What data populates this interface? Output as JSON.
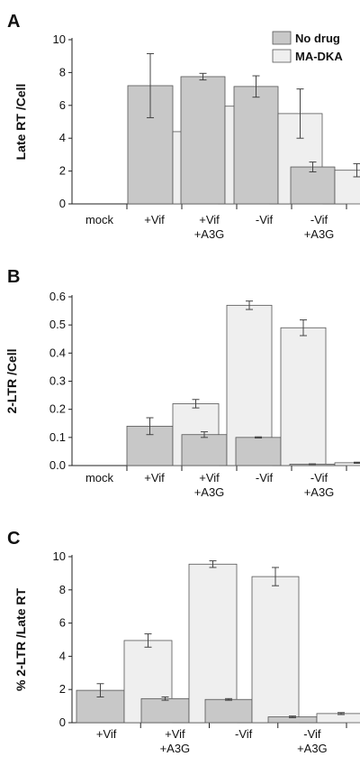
{
  "chart_data": [
    {
      "type": "bar",
      "panel_label": "A",
      "ylabel": "Late RT /Cell",
      "ylim": [
        0,
        10
      ],
      "yticks": [
        "0",
        "2",
        "4",
        "6",
        "8",
        "10"
      ],
      "categories": [
        [
          "mock"
        ],
        [
          "+Vif"
        ],
        [
          "+Vif",
          "+A3G"
        ],
        [
          "-Vif"
        ],
        [
          "-Vif",
          "+A3G"
        ]
      ],
      "series": [
        {
          "name": "No drug",
          "color": "#c8c8c8",
          "values": [
            null,
            7.2,
            7.75,
            7.15,
            2.25
          ],
          "errors": [
            null,
            1.95,
            0.2,
            0.65,
            0.3
          ]
        },
        {
          "name": "MA-DKA",
          "color": "#efefef",
          "values": [
            null,
            4.4,
            5.95,
            5.5,
            2.05
          ],
          "errors": [
            null,
            0.9,
            0.5,
            1.5,
            0.4
          ]
        }
      ],
      "legend": {
        "position": "top-right"
      }
    },
    {
      "type": "bar",
      "panel_label": "B",
      "ylabel": "2-LTR /Cell",
      "ylim": [
        0,
        0.6
      ],
      "yticks": [
        "0.0",
        "0.1",
        "0.2",
        "0.3",
        "0.4",
        "0.5",
        "0.6"
      ],
      "categories": [
        [
          "mock"
        ],
        [
          "+Vif"
        ],
        [
          "+Vif",
          "+A3G"
        ],
        [
          "-Vif"
        ],
        [
          "-Vif",
          "+A3G"
        ]
      ],
      "series": [
        {
          "color": "#c8c8c8",
          "values": [
            null,
            0.14,
            0.11,
            0.1,
            0.005
          ],
          "errors": [
            null,
            0.03,
            0.01,
            0.002,
            0.001
          ]
        },
        {
          "color": "#efefef",
          "values": [
            null,
            0.22,
            0.57,
            0.49,
            0.01
          ],
          "errors": [
            null,
            0.015,
            0.015,
            0.028,
            0.002
          ]
        }
      ]
    },
    {
      "type": "bar",
      "panel_label": "C",
      "ylabel": "% 2-LTR /Late RT",
      "ylim": [
        0,
        10
      ],
      "yticks": [
        "0",
        "2",
        "4",
        "6",
        "8",
        "10"
      ],
      "categories": [
        [
          "+Vif"
        ],
        [
          "+Vif",
          "+A3G"
        ],
        [
          "-Vif"
        ],
        [
          "-Vif",
          "+A3G"
        ]
      ],
      "series": [
        {
          "color": "#c8c8c8",
          "values": [
            1.95,
            1.45,
            1.4,
            0.35
          ],
          "errors": [
            0.4,
            0.1,
            0.05,
            0.05
          ]
        },
        {
          "color": "#efefef",
          "values": [
            4.95,
            9.55,
            8.8,
            0.55
          ],
          "errors": [
            0.4,
            0.2,
            0.55,
            0.06
          ]
        }
      ]
    }
  ]
}
